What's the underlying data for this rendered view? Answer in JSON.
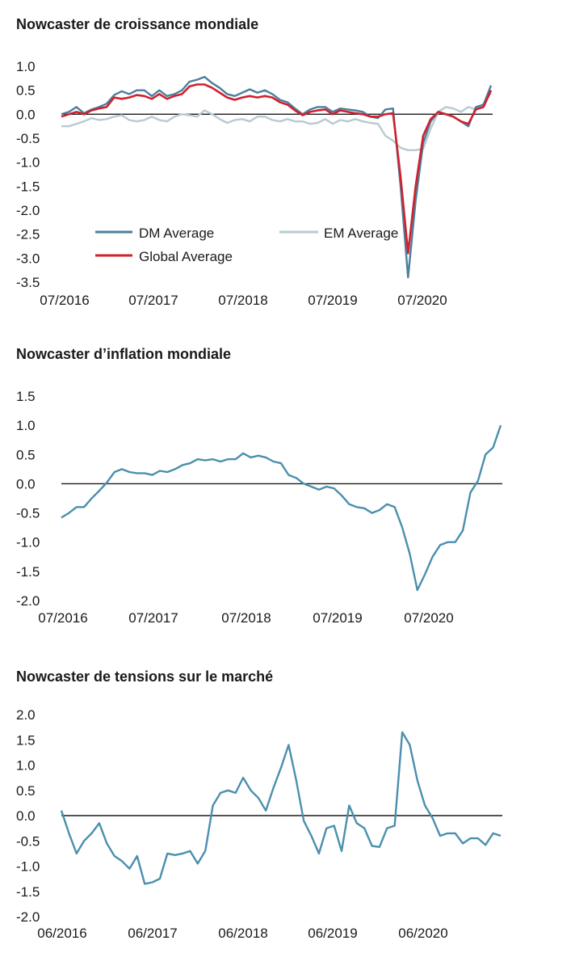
{
  "chart_data": [
    {
      "type": "line",
      "title": "Nowcaster de croissance mondiale",
      "x_tick_labels": [
        "07/2016",
        "07/2017",
        "07/2018",
        "07/2019",
        "07/2020"
      ],
      "x_period": "2016-03 to 2021-03 (monthly)",
      "ylim": [
        -3.5,
        1.0
      ],
      "yticks": [
        "1.0",
        "0.5",
        "0.0",
        "-0.5",
        "-1.0",
        "-1.5",
        "-2.0",
        "-2.5",
        "-3.0",
        "-3.5"
      ],
      "grid": false,
      "zero_line": true,
      "legend": "inside-lower-left",
      "series": [
        {
          "name": "DM Average",
          "color": "#4a7f9e",
          "values": [
            0.0,
            0.05,
            0.15,
            0.02,
            0.1,
            0.15,
            0.22,
            0.4,
            0.48,
            0.42,
            0.5,
            0.5,
            0.38,
            0.5,
            0.38,
            0.42,
            0.5,
            0.68,
            0.72,
            0.78,
            0.65,
            0.55,
            0.42,
            0.38,
            0.45,
            0.52,
            0.45,
            0.5,
            0.42,
            0.3,
            0.25,
            0.12,
            0.0,
            0.1,
            0.15,
            0.15,
            0.05,
            0.12,
            0.1,
            0.08,
            0.05,
            -0.05,
            -0.08,
            0.1,
            0.12,
            -1.5,
            -3.4,
            -1.8,
            -0.6,
            -0.15,
            0.05,
            0.0,
            -0.05,
            -0.15,
            -0.25,
            0.15,
            0.2,
            0.6
          ]
        },
        {
          "name": "EM Average",
          "color": "#b8cad2",
          "values": [
            -0.25,
            -0.25,
            -0.2,
            -0.15,
            -0.08,
            -0.12,
            -0.1,
            -0.05,
            -0.02,
            -0.12,
            -0.15,
            -0.12,
            -0.05,
            -0.12,
            -0.15,
            -0.05,
            0.0,
            -0.02,
            -0.05,
            0.08,
            0.0,
            -0.1,
            -0.18,
            -0.12,
            -0.1,
            -0.15,
            -0.05,
            -0.05,
            -0.12,
            -0.15,
            -0.1,
            -0.15,
            -0.15,
            -0.2,
            -0.18,
            -0.1,
            -0.2,
            -0.12,
            -0.15,
            -0.1,
            -0.15,
            -0.18,
            -0.2,
            -0.45,
            -0.55,
            -0.7,
            -0.75,
            -0.75,
            -0.72,
            -0.3,
            0.05,
            0.15,
            0.12,
            0.05,
            0.15,
            0.1,
            0.22,
            0.45
          ]
        },
        {
          "name": "Global Average",
          "color": "#d0202e",
          "values": [
            -0.05,
            0.0,
            0.05,
            0.0,
            0.08,
            0.12,
            0.15,
            0.35,
            0.32,
            0.35,
            0.4,
            0.38,
            0.32,
            0.42,
            0.32,
            0.38,
            0.42,
            0.58,
            0.62,
            0.62,
            0.55,
            0.45,
            0.35,
            0.3,
            0.35,
            0.38,
            0.35,
            0.38,
            0.35,
            0.25,
            0.2,
            0.08,
            -0.02,
            0.05,
            0.08,
            0.1,
            0.0,
            0.08,
            0.05,
            0.02,
            0.0,
            -0.05,
            -0.05,
            0.0,
            0.02,
            -1.3,
            -2.9,
            -1.5,
            -0.45,
            -0.1,
            0.05,
            0.0,
            -0.05,
            -0.15,
            -0.2,
            0.1,
            0.15,
            0.5
          ]
        }
      ]
    },
    {
      "type": "line",
      "title": "Nowcaster d’inflation mondiale",
      "x_tick_labels": [
        "07/2016",
        "07/2017",
        "07/2018",
        "07/2019",
        "07/2020"
      ],
      "x_period": "2016-03 to 2021-03 (monthly)",
      "ylim": [
        -2.0,
        1.5
      ],
      "yticks": [
        "1.5",
        "1.0",
        "0.5",
        "0.0",
        "-0.5",
        "-1.0",
        "-1.5",
        "-2.0"
      ],
      "grid": false,
      "zero_line": true,
      "series": [
        {
          "name": "",
          "color": "#4a8fae",
          "values": [
            -0.58,
            -0.5,
            -0.4,
            -0.4,
            -0.25,
            -0.12,
            0.02,
            0.2,
            0.25,
            0.2,
            0.18,
            0.18,
            0.15,
            0.22,
            0.2,
            0.25,
            0.32,
            0.35,
            0.42,
            0.4,
            0.42,
            0.38,
            0.42,
            0.42,
            0.52,
            0.45,
            0.48,
            0.45,
            0.38,
            0.35,
            0.15,
            0.1,
            0.0,
            -0.05,
            -0.1,
            -0.05,
            -0.08,
            -0.2,
            -0.35,
            -0.4,
            -0.42,
            -0.5,
            -0.45,
            -0.35,
            -0.4,
            -0.75,
            -1.2,
            -1.82,
            -1.55,
            -1.25,
            -1.05,
            -1.0,
            -1.0,
            -0.8,
            -0.15,
            0.05,
            0.5,
            0.62,
            1.0
          ]
        }
      ]
    },
    {
      "type": "line",
      "title": "Nowcaster de tensions sur le marché",
      "x_tick_labels": [
        "06/2016",
        "06/2017",
        "06/2018",
        "06/2019",
        "06/2020"
      ],
      "x_period": "2016-03 to 2021-03 (monthly)",
      "ylim": [
        -2.0,
        2.0
      ],
      "yticks": [
        "2.0",
        "1.5",
        "1.0",
        "0.5",
        "0.0",
        "-0.5",
        "-1.0",
        "-1.5",
        "-2.0"
      ],
      "grid": false,
      "zero_line": true,
      "series": [
        {
          "name": "",
          "color": "#4a8fae",
          "values": [
            0.1,
            -0.35,
            -0.75,
            -0.5,
            -0.35,
            -0.15,
            -0.55,
            -0.8,
            -0.9,
            -1.05,
            -0.8,
            -1.35,
            -1.32,
            -1.25,
            -0.75,
            -0.78,
            -0.75,
            -0.7,
            -0.95,
            -0.7,
            0.2,
            0.45,
            0.5,
            0.45,
            0.75,
            0.5,
            0.35,
            0.1,
            0.55,
            0.95,
            1.4,
            0.7,
            -0.1,
            -0.4,
            -0.75,
            -0.25,
            -0.2,
            -0.7,
            0.2,
            -0.15,
            -0.25,
            -0.6,
            -0.62,
            -0.25,
            -0.2,
            1.65,
            1.4,
            0.7,
            0.2,
            -0.05,
            -0.4,
            -0.35,
            -0.35,
            -0.55,
            -0.45,
            -0.45,
            -0.58,
            -0.35,
            -0.4
          ]
        }
      ]
    }
  ]
}
